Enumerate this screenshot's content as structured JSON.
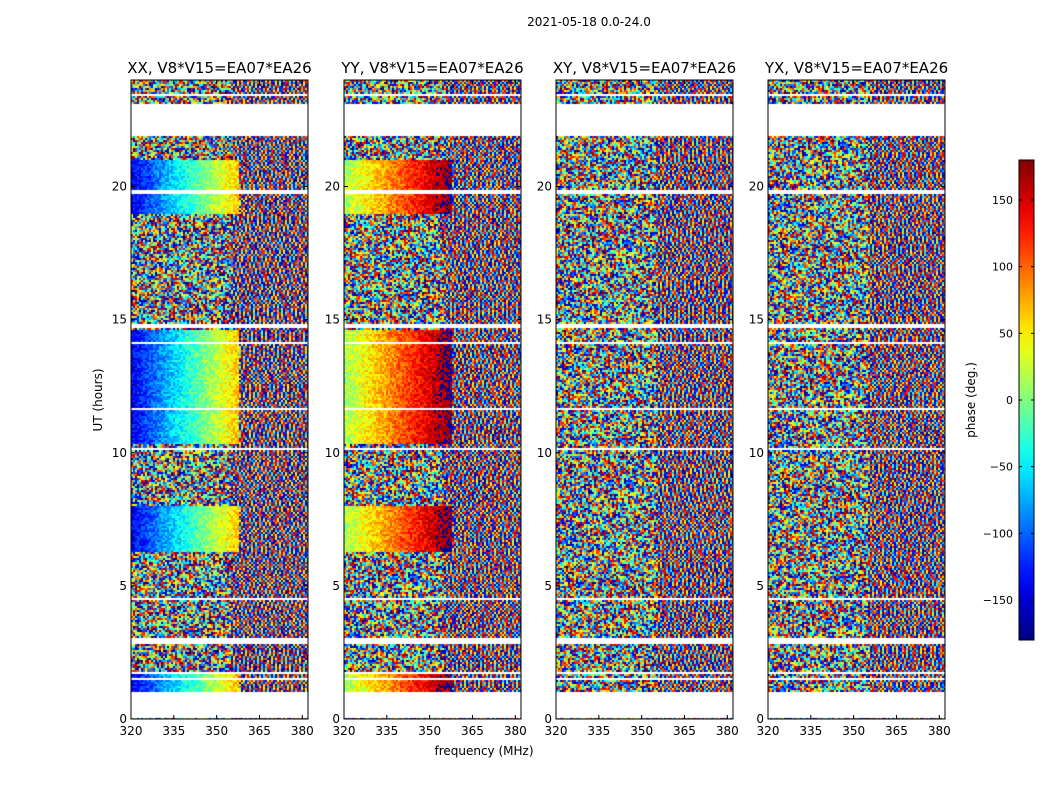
{
  "chart_data": {
    "type": "heatmap",
    "title": "2021-05-18 0.0-24.0",
    "xlabel": "frequency (MHz)",
    "ylabel": "UT (hours)",
    "xlim": [
      320,
      382
    ],
    "ylim": [
      0,
      24
    ],
    "xticks": [
      320,
      335,
      350,
      365,
      380
    ],
    "yticks": [
      0,
      5,
      10,
      15,
      20
    ],
    "panels": [
      {
        "title": "XX, V8*V15=EA07*EA26",
        "phase_offset": -60
      },
      {
        "title": "YY, V8*V15=EA07*EA26",
        "phase_offset": 80
      },
      {
        "title": "XY, V8*V15=EA07*EA26",
        "phase_offset": 0
      },
      {
        "title": "YX, V8*V15=EA07*EA26",
        "phase_offset": 0
      }
    ],
    "colorbar": {
      "label": "phase (deg.)",
      "range": [
        -180,
        180
      ],
      "ticks": [
        150,
        100,
        50,
        0,
        -50,
        -100,
        -150
      ],
      "tick_labels": [
        "150",
        "100",
        "50",
        "0",
        "−50",
        "−100",
        "−150"
      ],
      "colormap": "jet"
    },
    "flagged_hours": [
      [
        0.05,
        1.0
      ],
      [
        1.45,
        1.52
      ],
      [
        1.68,
        1.74
      ],
      [
        2.78,
        3.05
      ],
      [
        4.5,
        4.58
      ],
      [
        10.1,
        10.2
      ],
      [
        11.6,
        11.66
      ],
      [
        14.1,
        14.16
      ],
      [
        14.7,
        14.85
      ],
      [
        19.75,
        19.85
      ],
      [
        21.9,
        23.1
      ],
      [
        23.4,
        23.5
      ]
    ]
  }
}
